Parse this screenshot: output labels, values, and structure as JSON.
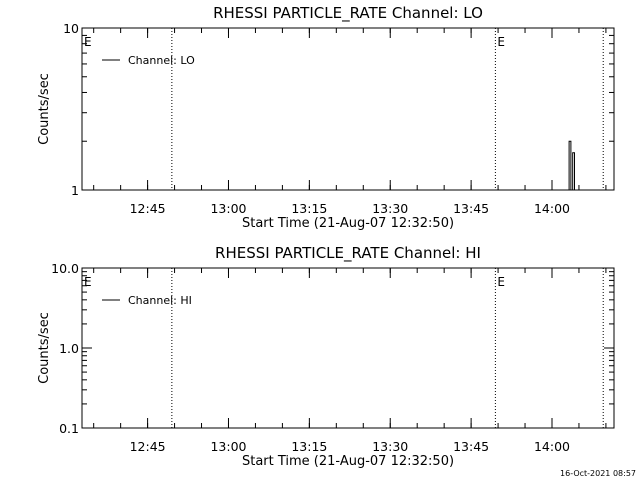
{
  "timestamp": "16-Oct-2021 08:57",
  "chart_data": [
    {
      "type": "line",
      "title": "RHESSI PARTICLE_RATE Channel: LO",
      "xlabel": "Start Time (21-Aug-07 12:32:50)",
      "ylabel": "Counts/sec",
      "yscale": "log",
      "ylim": [
        1,
        10
      ],
      "yticks": [
        1,
        10
      ],
      "ytick_labels": [
        "1",
        "10"
      ],
      "xlim": [
        "12:32:50",
        "14:11:30"
      ],
      "xticks": [
        "12:45",
        "13:00",
        "13:15",
        "13:30",
        "13:45",
        "14:00"
      ],
      "event_lines": [
        "12:49:30",
        "13:49:30",
        "14:09:30"
      ],
      "event_flags": [
        {
          "time": "12:32:50",
          "label": "E"
        },
        {
          "time": "13:49:30",
          "label": "E"
        }
      ],
      "legend": {
        "position": "top-left",
        "entries": [
          "Channel: LO"
        ]
      },
      "series": [
        {
          "name": "Channel: LO",
          "x": [
            "14:02:50",
            "14:03:10",
            "14:03:30",
            "14:03:50",
            "14:04:10"
          ],
          "values": [
            1,
            2,
            1,
            1.7,
            1
          ]
        }
      ]
    },
    {
      "type": "line",
      "title": "RHESSI PARTICLE_RATE Channel: HI",
      "xlabel": "Start Time (21-Aug-07 12:32:50)",
      "ylabel": "Counts/sec",
      "yscale": "log",
      "ylim": [
        0.1,
        10
      ],
      "yticks": [
        0.1,
        1,
        10
      ],
      "ytick_labels": [
        "0.1",
        "1.0",
        "10.0"
      ],
      "xlim": [
        "12:32:50",
        "14:11:30"
      ],
      "xticks": [
        "12:45",
        "13:00",
        "13:15",
        "13:30",
        "13:45",
        "14:00"
      ],
      "event_lines": [
        "12:49:30",
        "13:49:30",
        "14:09:30"
      ],
      "event_flags": [
        {
          "time": "12:32:50",
          "label": "E"
        },
        {
          "time": "13:49:30",
          "label": "E"
        }
      ],
      "legend": {
        "position": "top-left",
        "entries": [
          "Channel: HI"
        ]
      },
      "series": [
        {
          "name": "Channel: HI",
          "x": [],
          "values": []
        }
      ]
    }
  ]
}
